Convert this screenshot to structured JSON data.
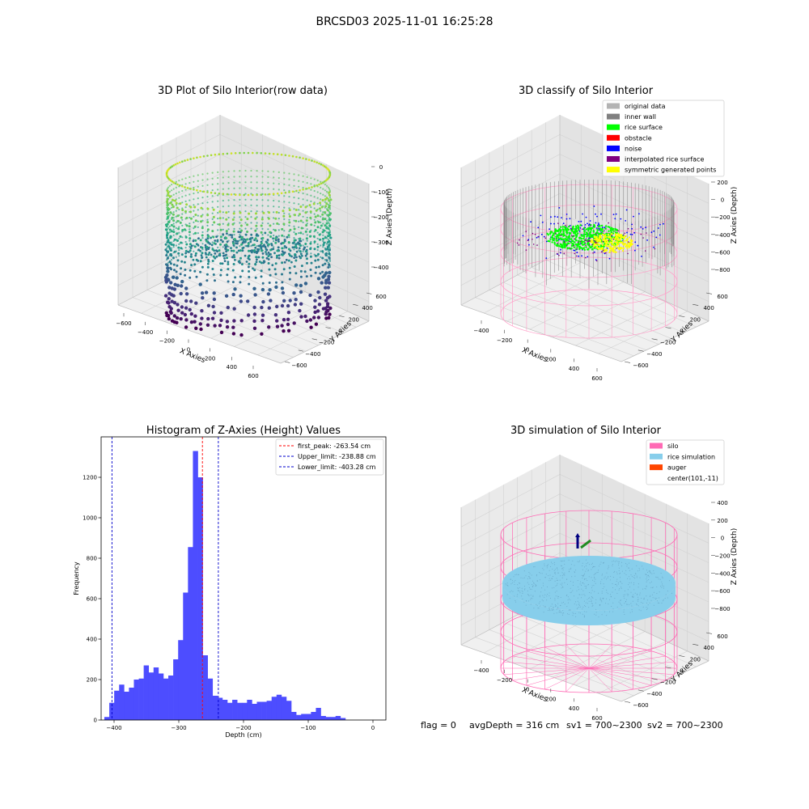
{
  "figure": {
    "suptitle": "BRCSD03 2025-11-01 16:25:28",
    "status": {
      "flag": "flag = 0",
      "avg_depth": "avgDepth = 316 cm",
      "sv1": "sv1 = 700~2300",
      "sv2": "sv2 = 700~2300"
    }
  },
  "chart_data": [
    {
      "type": "scatter",
      "title": "3D Plot of Silo Interior(row data)",
      "xlabel": "X Axies",
      "ylabel": "Y Axies",
      "zlabel": "Z Axies (Depth)",
      "x_ticks": [
        "−600",
        "−400",
        "−200",
        "0",
        "200",
        "400",
        "600"
      ],
      "y_ticks": [
        "−600",
        "−400",
        "−200",
        "0",
        "200",
        "400",
        "600"
      ],
      "z_ticks": [
        "0",
        "−100",
        "−200",
        "−300",
        "−400"
      ],
      "xlim": [
        -600,
        700
      ],
      "ylim": [
        -600,
        700
      ],
      "zlim": [
        -420,
        0
      ],
      "colormap": "viridis"
    },
    {
      "type": "scatter",
      "title": "3D classify of Silo Interior",
      "xlabel": "X Axies",
      "ylabel": "Y Axies",
      "zlabel": "Z Axies (Depth)",
      "x_ticks": [
        "−400",
        "−200",
        "0",
        "200",
        "400",
        "600"
      ],
      "y_ticks": [
        "−600",
        "−400",
        "−200",
        "0",
        "200",
        "400",
        "600"
      ],
      "z_ticks": [
        "200",
        "0",
        "−200",
        "−400",
        "−600",
        "−800"
      ],
      "legend_position": "upper-right",
      "legend": [
        {
          "label": "original data",
          "color": "#b3b3b3"
        },
        {
          "label": "inner wall",
          "color": "#808080"
        },
        {
          "label": "rice surface",
          "color": "#00ff00"
        },
        {
          "label": "obstacle",
          "color": "#ff0000"
        },
        {
          "label": "noise",
          "color": "#0000ff"
        },
        {
          "label": "interpolated rice surface",
          "color": "#800080"
        },
        {
          "label": "symmetric generated points",
          "color": "#ffff00"
        }
      ]
    },
    {
      "type": "bar",
      "title": "Histogram of Z-Axies (Height) Values",
      "xlabel": "Depth (cm)",
      "ylabel": "Frequency",
      "xlim": [
        -420,
        20
      ],
      "ylim": [
        0,
        1400
      ],
      "x_ticks": [
        -400,
        -300,
        -200,
        -100,
        0
      ],
      "x_tick_labels": [
        "−400",
        "−300",
        "−200",
        "−100",
        "0"
      ],
      "y_ticks": [
        0,
        200,
        400,
        600,
        800,
        1000,
        1200
      ],
      "bar_color": "#4d4dff",
      "bins_start": -415,
      "bin_width": 7.6,
      "values": [
        15,
        85,
        145,
        175,
        140,
        160,
        200,
        205,
        270,
        235,
        260,
        230,
        205,
        220,
        300,
        395,
        630,
        855,
        1330,
        1200,
        320,
        205,
        120,
        110,
        100,
        85,
        100,
        85,
        85,
        100,
        80,
        90,
        90,
        95,
        115,
        125,
        115,
        95,
        40,
        25,
        30,
        30,
        40,
        60,
        20,
        15,
        15,
        20,
        10
      ],
      "vlines": [
        {
          "x": -263.54,
          "color": "#ff0000",
          "label": "first_peak: -263.54 cm"
        },
        {
          "x": -238.88,
          "color": "#0000cc",
          "label": "Upper_limit: -238.88 cm"
        },
        {
          "x": -403.28,
          "color": "#0000cc",
          "label": "Lower_limit: -403.28 cm"
        }
      ],
      "legend_position": "upper-right"
    },
    {
      "type": "scatter",
      "title": "3D simulation of Silo Interior",
      "xlabel": "X Axies",
      "ylabel": "Y Axies",
      "zlabel": "Z Axies (Depth)",
      "x_ticks": [
        "−400",
        "−200",
        "0",
        "200",
        "400",
        "600"
      ],
      "y_ticks": [
        "−600",
        "−400",
        "−200",
        "0",
        "200",
        "400",
        "600"
      ],
      "z_ticks": [
        "400",
        "200",
        "0",
        "−200",
        "−400",
        "−600",
        "−800"
      ],
      "legend_position": "upper-right",
      "legend": [
        {
          "label": "silo",
          "color": "#ff69b4"
        },
        {
          "label": "rice simulation",
          "color": "#87ceeb"
        },
        {
          "label": "auger",
          "color": "#ff4500"
        },
        {
          "label": "center(101,-11)",
          "color": ""
        }
      ]
    }
  ]
}
